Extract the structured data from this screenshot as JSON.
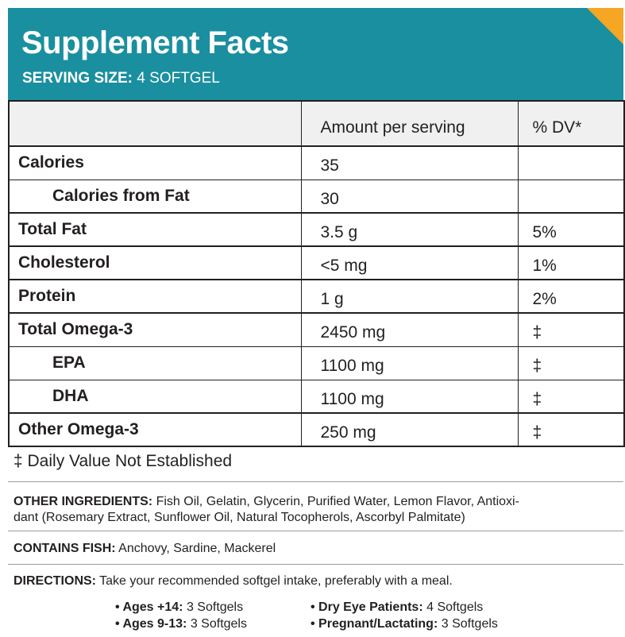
{
  "header": {
    "title": "Supplement Facts",
    "serving_label": "SERVING SIZE:",
    "serving_value": "4 SOFTGEL",
    "colors": {
      "banner": "#1a8fa0",
      "corner_accent": "#f5a623"
    }
  },
  "table": {
    "columns": [
      "",
      "Amount per serving",
      "% DV*"
    ],
    "rows": [
      {
        "name": "Calories",
        "amount": "35",
        "dv": ""
      },
      {
        "name": "Calories from Fat",
        "amount": "30",
        "dv": ""
      },
      {
        "name": "Total Fat",
        "amount": "3.5 g",
        "dv": "5%"
      },
      {
        "name": "Cholesterol",
        "amount": "<5 mg",
        "dv": "1%"
      },
      {
        "name": "Protein",
        "amount": "1 g",
        "dv": "2%"
      },
      {
        "name": "Total Omega-3",
        "amount": "2450 mg",
        "dv": "‡"
      },
      {
        "name": "EPA",
        "amount": "1100 mg",
        "dv": "‡"
      },
      {
        "name": "DHA",
        "amount": "1100 mg",
        "dv": "‡"
      },
      {
        "name": "Other Omega-3",
        "amount": "250 mg",
        "dv": "‡"
      }
    ]
  },
  "dv_note": "‡ Daily Value Not Established",
  "other_ingredients": {
    "label": "OTHER INGREDIENTS:",
    "line1": "Fish Oil, Gelatin, Glycerin, Purified Water, Lemon Flavor, Antioxi-",
    "line2": "dant (Rosemary Extract, Sunflower Oil, Natural Tocopherols, Ascorbyl Palmitate)"
  },
  "contains_fish": {
    "label": "CONTAINS FISH:",
    "text": "Anchovy, Sardine, Mackerel"
  },
  "directions": {
    "label": "DIRECTIONS:",
    "text": "Take your recommended softgel intake, preferably with a meal.",
    "doses": [
      {
        "label": "• Ages +14:",
        "value": "3 Softgels"
      },
      {
        "label": "• Ages 9-13:",
        "value": "3 Softgels"
      },
      {
        "label": "• Dry Eye Patients:",
        "value": "4 Softgels"
      },
      {
        "label": "• Pregnant/Lactating:",
        "value": "3 Softgels"
      }
    ]
  }
}
